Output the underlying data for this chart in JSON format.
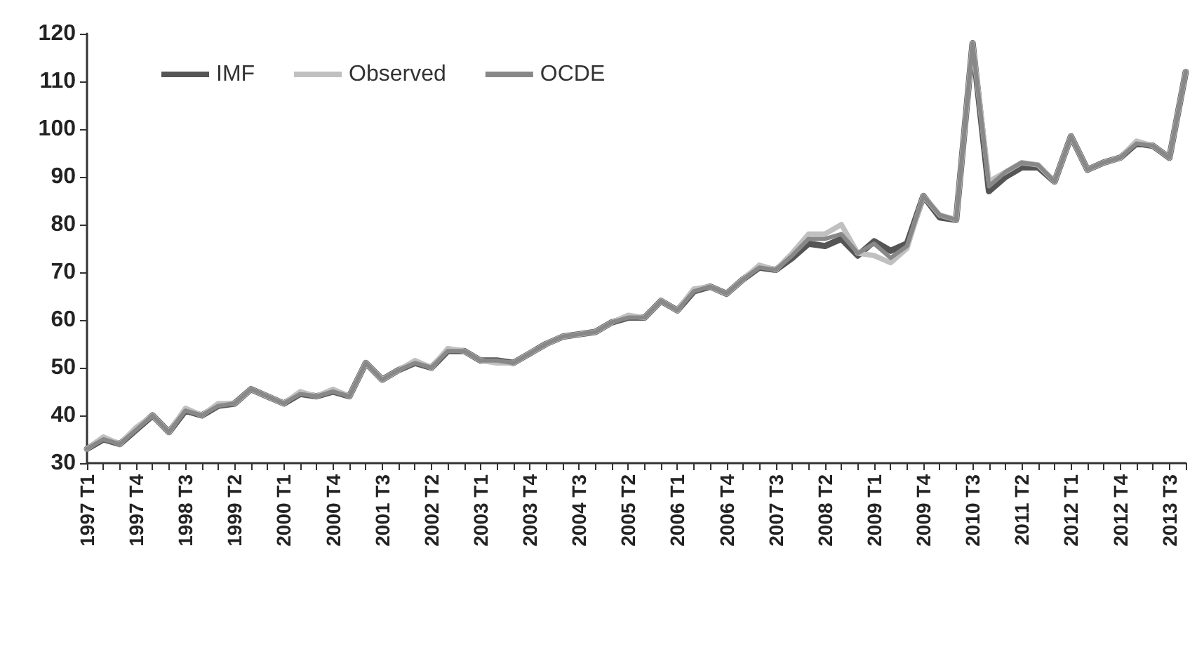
{
  "chart_data": {
    "type": "line",
    "categories": [
      "1997 T1",
      null,
      null,
      "1997 T4",
      null,
      null,
      "1998 T3",
      null,
      null,
      "1999 T2",
      null,
      null,
      "2000 T1",
      null,
      null,
      "2000 T4",
      null,
      null,
      "2001 T3",
      null,
      null,
      "2002 T2",
      null,
      null,
      "2003 T1",
      null,
      null,
      "2003 T4",
      null,
      null,
      "2004 T3",
      null,
      null,
      "2005 T2",
      null,
      null,
      "2006 T1",
      null,
      null,
      "2006 T4",
      null,
      null,
      "2007 T3",
      null,
      null,
      "2008 T2",
      null,
      null,
      "2009 T1",
      null,
      null,
      "2009 T4",
      null,
      null,
      "2010 T3",
      null,
      null,
      "2011 T2",
      null,
      null,
      "2012 T1",
      null,
      null,
      "2012 T4",
      null,
      null,
      "2013 T3",
      null
    ],
    "series": [
      {
        "name": "IMF",
        "color": "#555555",
        "values": [
          33,
          35,
          34,
          37,
          40,
          36.5,
          41,
          40,
          42,
          42.5,
          45.5,
          44,
          42.5,
          44.5,
          44,
          45,
          44,
          51,
          47.5,
          49.5,
          51,
          50,
          53.5,
          53.5,
          51.5,
          51.5,
          51,
          53,
          55,
          56.5,
          57,
          57.5,
          59.5,
          60.5,
          60.5,
          64,
          62,
          66,
          67,
          65.5,
          68.5,
          71,
          70.5,
          73,
          76,
          75.5,
          77,
          73.5,
          76.5,
          74.5,
          76,
          86,
          81.5,
          81,
          118,
          87,
          90,
          92,
          92,
          89,
          98.5,
          91.5,
          93,
          94,
          97,
          96.5,
          94,
          112
        ]
      },
      {
        "name": "Observed",
        "color": "#c0c0c0",
        "values": [
          33,
          35.5,
          34,
          37.5,
          40,
          36.5,
          41.5,
          40,
          42.5,
          42.5,
          45.5,
          44,
          42.5,
          45,
          44,
          45.5,
          44,
          51,
          47.5,
          49.5,
          51.5,
          50,
          54,
          53.5,
          51.5,
          51,
          51,
          53,
          55,
          56.5,
          57,
          57.5,
          59.5,
          61,
          60.5,
          64,
          62,
          66.5,
          67,
          65.5,
          68.5,
          71.5,
          70.5,
          74,
          78,
          78,
          80,
          74,
          73.5,
          72,
          75,
          86,
          82,
          81,
          118,
          89,
          91,
          93,
          92.5,
          89,
          98.5,
          91.5,
          93,
          94,
          97.5,
          96.5,
          94,
          112
        ]
      },
      {
        "name": "OCDE",
        "color": "#888888",
        "values": [
          33,
          35,
          34,
          37,
          40,
          36.5,
          41,
          40,
          42,
          42.5,
          45.5,
          44,
          42.5,
          44.5,
          44,
          45,
          44,
          51,
          47.5,
          49.5,
          51,
          50,
          53.5,
          53.5,
          51.5,
          51.5,
          51,
          53,
          55,
          56.5,
          57,
          57.5,
          59.5,
          60.5,
          60.5,
          64,
          62,
          66,
          67,
          65.5,
          68.5,
          71,
          70.5,
          73.5,
          77,
          77,
          78,
          74,
          76,
          73,
          75.5,
          86,
          82,
          81,
          118,
          88,
          91,
          93,
          92.5,
          89,
          98.5,
          91.5,
          93,
          94,
          97,
          96.5,
          94,
          112
        ]
      }
    ],
    "ylim": [
      30,
      120
    ],
    "yticks": [
      30,
      40,
      50,
      60,
      70,
      80,
      90,
      100,
      110,
      120
    ],
    "grid": false,
    "legend": "top left",
    "marker": "none",
    "line_style": "solid"
  }
}
